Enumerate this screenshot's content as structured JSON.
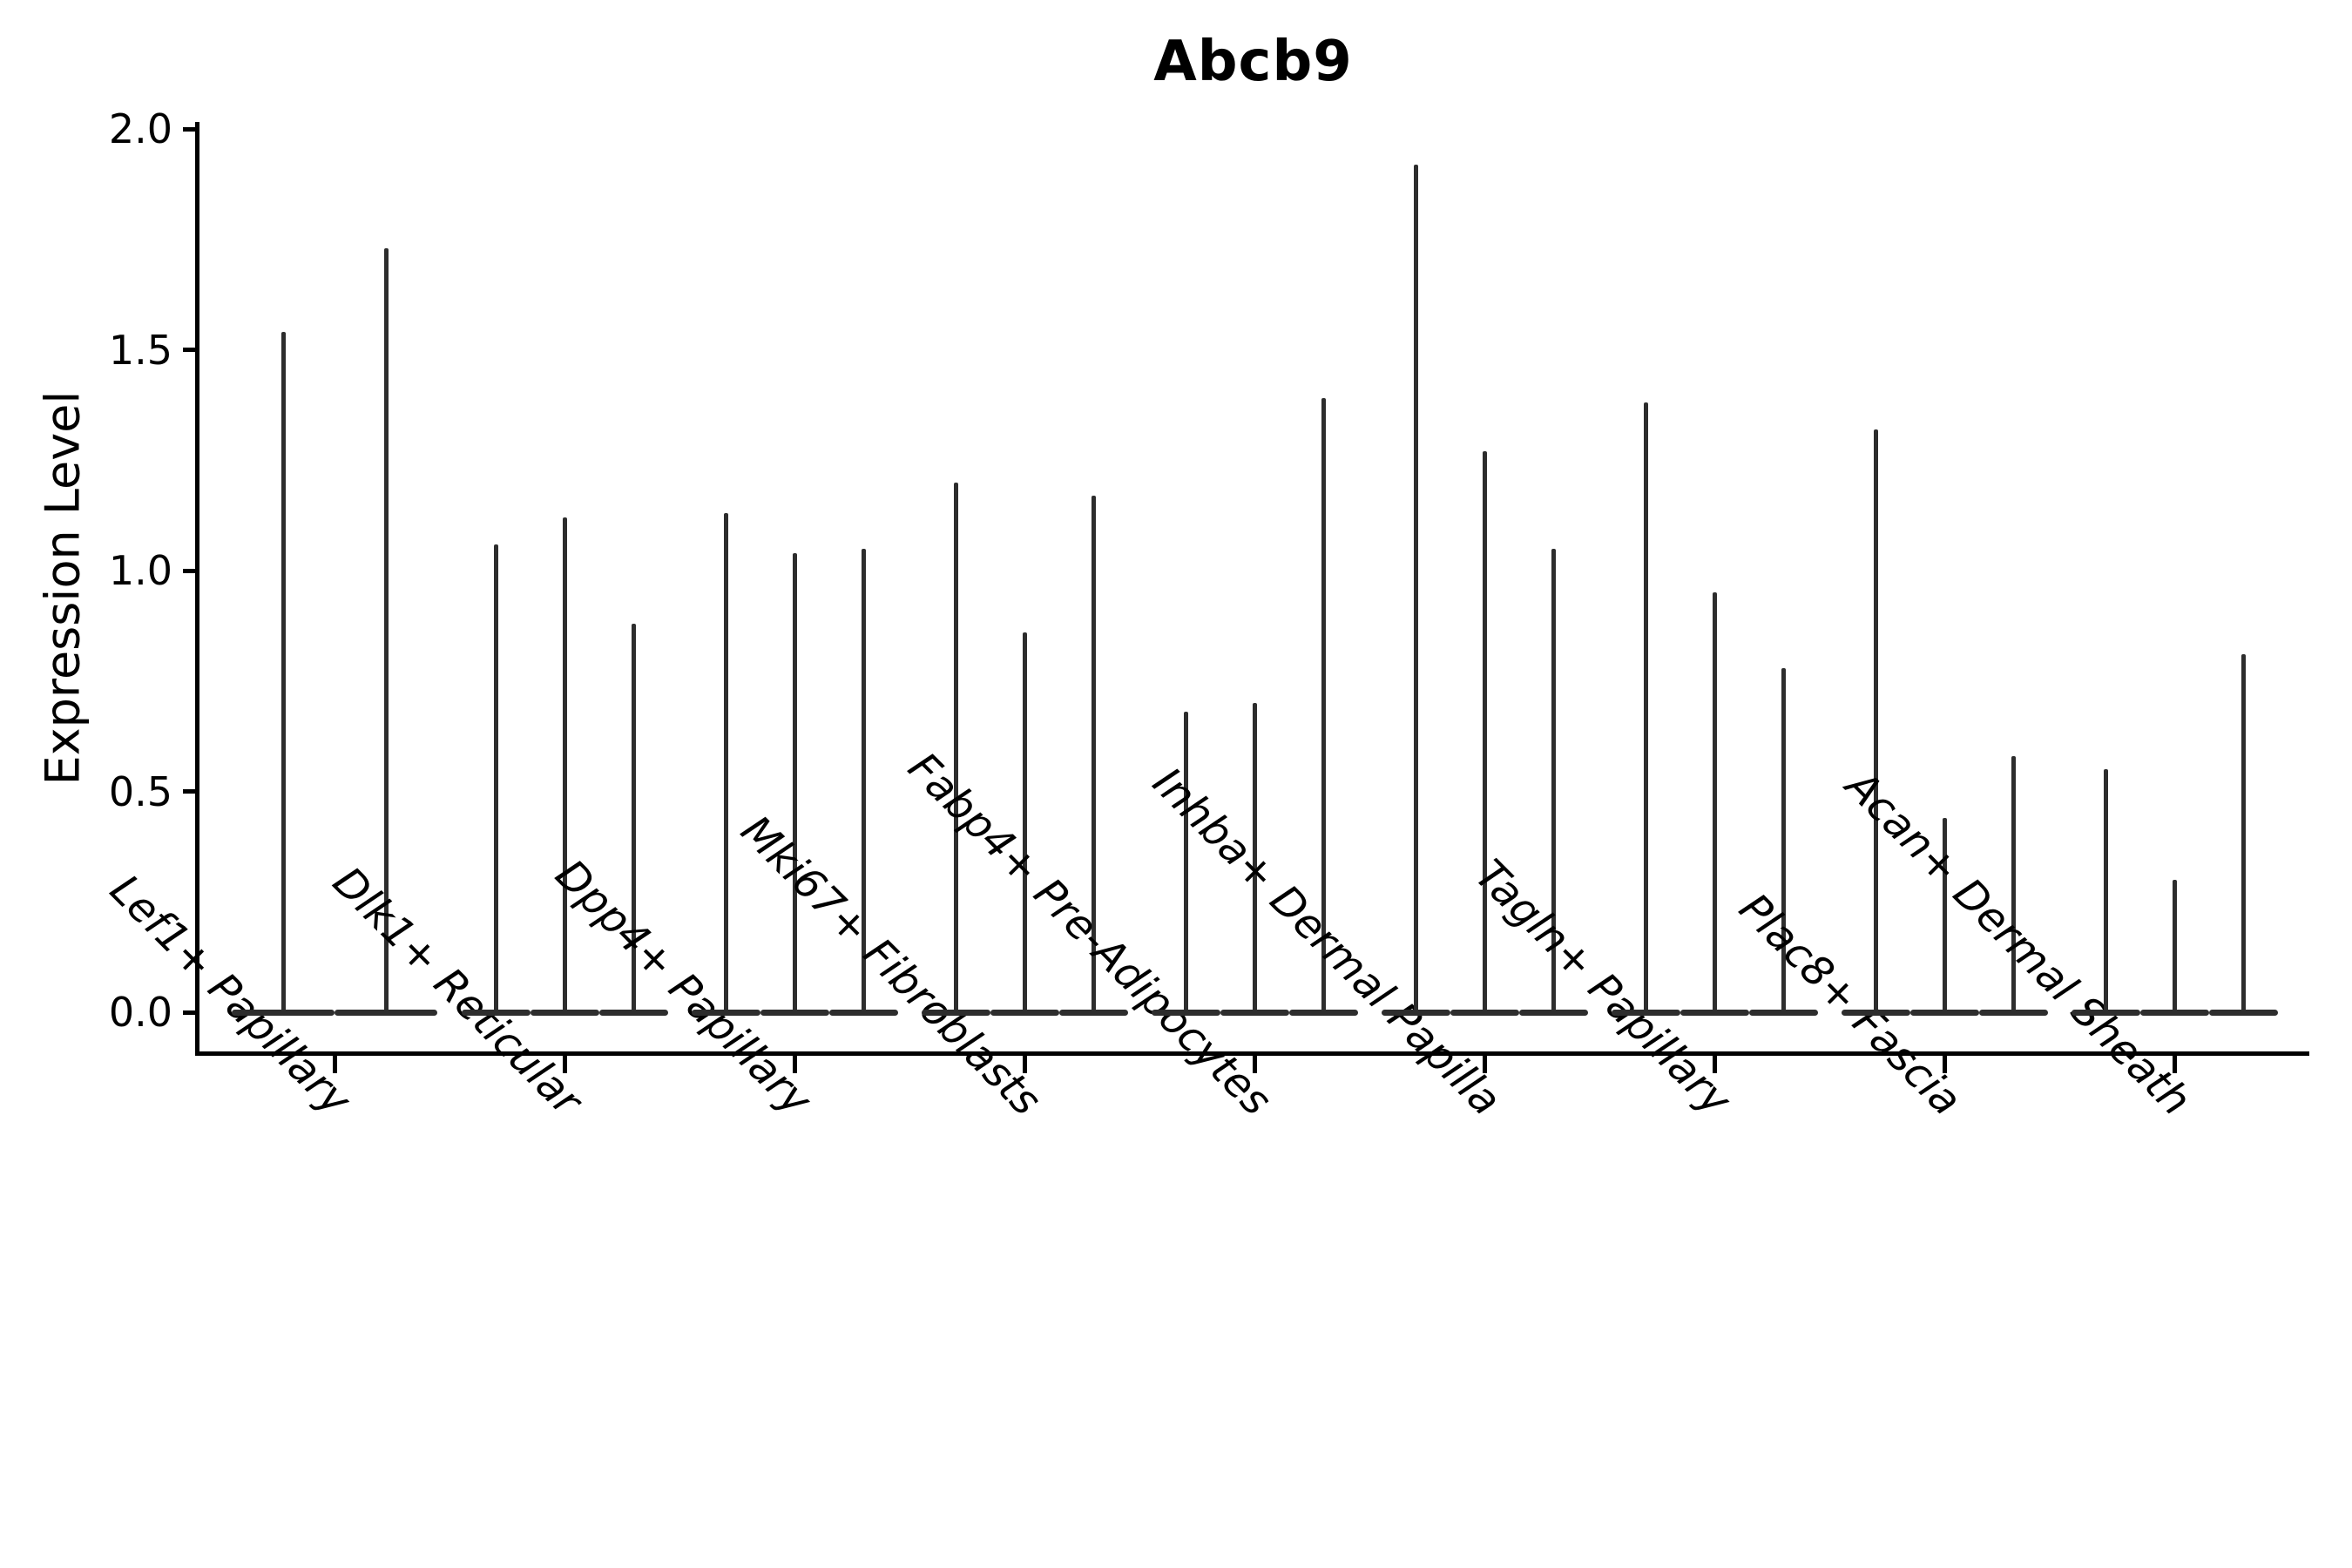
{
  "figure": {
    "title": "Abcb9",
    "ylabel": "Expression Level"
  },
  "chart_data": {
    "type": "violin",
    "title": "Abcb9",
    "xlabel": "",
    "ylabel": "Expression Level",
    "ylim": [
      -0.09,
      2.01
    ],
    "yticks": [
      "0.0",
      "0.5",
      "1.0",
      "1.5",
      "2.0"
    ],
    "grid": false,
    "legend": false,
    "x_label_rotation": 45,
    "ink_color": "#2d2d2d",
    "axis_color": "#000000",
    "background_color": "#ffffff",
    "categories": [
      "Lef1+ Papillary",
      "Dlk1+ Reticular",
      "Dpp4+ Papillary",
      "Mki67+ Fibroblasts",
      "Fabp4+ Pre-Adipocytes",
      "Inhba+ Dermal Papilla",
      "Tagln+ Papillary",
      "Plac8+ Fascia",
      "Acan+ Dermal Sheath"
    ],
    "groups": [
      {
        "category": "Lef1+ Papillary",
        "violin_max_expression": [
          1.54,
          1.73
        ]
      },
      {
        "category": "Dlk1+ Reticular",
        "violin_max_expression": [
          1.06,
          1.12,
          0.88
        ]
      },
      {
        "category": "Dpp4+ Papillary",
        "violin_max_expression": [
          1.13,
          1.04,
          1.05
        ]
      },
      {
        "category": "Mki67+ Fibroblasts",
        "violin_max_expression": [
          1.2,
          0.86,
          1.17
        ]
      },
      {
        "category": "Fabp4+ Pre-Adipocytes",
        "violin_max_expression": [
          0.68,
          0.7,
          1.39
        ]
      },
      {
        "category": "Inhba+ Dermal Papilla",
        "violin_max_expression": [
          1.92,
          1.27,
          1.05
        ]
      },
      {
        "category": "Tagln+ Papillary",
        "violin_max_expression": [
          1.38,
          0.95,
          0.78
        ]
      },
      {
        "category": "Plac8+ Fascia",
        "violin_max_expression": [
          1.32,
          0.44,
          0.58
        ]
      },
      {
        "category": "Acan+ Dermal Sheath",
        "violin_max_expression": [
          0.55,
          0.3,
          0.81
        ]
      }
    ],
    "note": "Violins collapsed to thin spikes; bulk of distribution mass at 0 forms the flat base bars."
  }
}
